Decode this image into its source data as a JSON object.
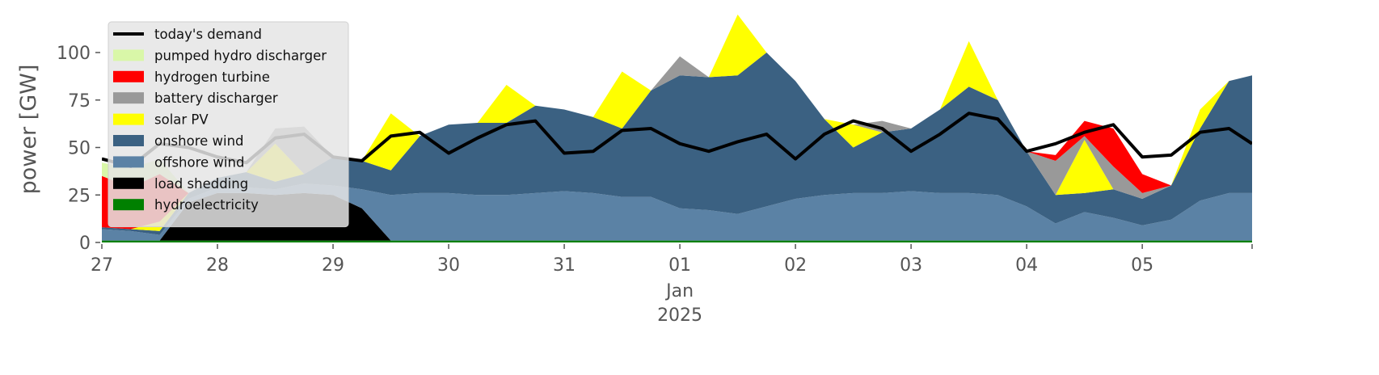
{
  "chart_data": {
    "type": "stacked_area",
    "ylabel": "power [GW]",
    "x": [
      0,
      0.25,
      0.5,
      0.75,
      1,
      1.25,
      1.5,
      1.75,
      2,
      2.25,
      2.5,
      2.75,
      3,
      3.25,
      3.5,
      3.75,
      4,
      4.25,
      4.5,
      4.75,
      5,
      5.25,
      5.5,
      5.75,
      6,
      6.25,
      6.5,
      6.75,
      7,
      7.25,
      7.5,
      7.75,
      8,
      8.25,
      8.5,
      8.75,
      9,
      9.25,
      9.5,
      9.75,
      9.95
    ],
    "xlim": [
      0,
      9.95
    ],
    "xticks": [
      {
        "value": 0,
        "label": "27"
      },
      {
        "value": 1,
        "label": "28"
      },
      {
        "value": 2,
        "label": "29"
      },
      {
        "value": 3,
        "label": "30"
      },
      {
        "value": 4,
        "label": "31"
      },
      {
        "value": 5,
        "label": "01"
      },
      {
        "value": 6,
        "label": "02"
      },
      {
        "value": 7,
        "label": "03"
      },
      {
        "value": 8,
        "label": "04"
      },
      {
        "value": 9,
        "label": "05"
      }
    ],
    "x_month": "Jan",
    "x_year": "2025",
    "ylim": [
      0,
      120
    ],
    "yticks": [
      0,
      25,
      50,
      75,
      100
    ],
    "demand": {
      "name": "today's demand",
      "color": "#000000",
      "values": [
        44,
        40,
        52,
        50,
        45,
        42,
        55,
        57,
        45,
        43,
        56,
        58,
        47,
        55,
        62,
        64,
        47,
        48,
        59,
        60,
        52,
        48,
        53,
        57,
        44,
        57,
        64,
        60,
        48,
        57,
        68,
        65,
        48,
        52,
        58,
        62,
        45,
        46,
        58,
        60,
        52
      ]
    },
    "series": [
      {
        "name": "hydroelectricity",
        "color": "#008000",
        "values": [
          1,
          1,
          1,
          1,
          1,
          1,
          1,
          1,
          1,
          1,
          1,
          1,
          1,
          1,
          1,
          1,
          1,
          1,
          1,
          1,
          1,
          1,
          1,
          1,
          1,
          1,
          1,
          1,
          1,
          1,
          1,
          1,
          1,
          1,
          1,
          1,
          1,
          1,
          1,
          1,
          1
        ]
      },
      {
        "name": "load shedding",
        "color": "#000000",
        "values": [
          0,
          0,
          0,
          20,
          25,
          25,
          24,
          25,
          24,
          17,
          0,
          0,
          0,
          0,
          0,
          0,
          0,
          0,
          0,
          0,
          0,
          0,
          0,
          0,
          0,
          0,
          0,
          0,
          0,
          0,
          0,
          0,
          0,
          0,
          0,
          0,
          0,
          0,
          0,
          0,
          0
        ]
      },
      {
        "name": "offshore wind",
        "color": "#5b82a5",
        "values": [
          6,
          5,
          3,
          2,
          3,
          3,
          3,
          5,
          5,
          10,
          24,
          25,
          25,
          24,
          24,
          25,
          26,
          25,
          23,
          23,
          17,
          16,
          14,
          18,
          22,
          24,
          25,
          25,
          26,
          25,
          25,
          24,
          18,
          9,
          15,
          12,
          8,
          11,
          21,
          25,
          25
        ]
      },
      {
        "name": "onshore wind",
        "color": "#3b6182",
        "values": [
          1,
          1,
          2,
          3,
          5,
          8,
          4,
          5,
          15,
          15,
          13,
          30,
          36,
          38,
          38,
          46,
          43,
          40,
          36,
          56,
          70,
          70,
          73,
          81,
          62,
          40,
          24,
          32,
          33,
          44,
          56,
          50,
          29,
          15,
          10,
          15,
          14,
          18,
          38,
          59,
          62
        ]
      },
      {
        "name": "solar PV",
        "color": "#ffff00",
        "values": [
          0,
          0,
          5,
          0,
          0,
          0,
          20,
          0,
          0,
          0,
          30,
          0,
          0,
          0,
          20,
          0,
          0,
          0,
          30,
          0,
          0,
          0,
          32,
          0,
          0,
          0,
          12,
          0,
          0,
          0,
          24,
          0,
          0,
          0,
          28,
          0,
          0,
          0,
          10,
          0,
          0
        ]
      },
      {
        "name": "battery discharger",
        "color": "#999999",
        "values": [
          0,
          0,
          0,
          0,
          0,
          0,
          8,
          25,
          0,
          0,
          0,
          0,
          0,
          0,
          0,
          0,
          0,
          0,
          0,
          0,
          10,
          0,
          0,
          0,
          0,
          0,
          0,
          6,
          0,
          0,
          0,
          0,
          0,
          18,
          2,
          12,
          3,
          0,
          0,
          0,
          0
        ]
      },
      {
        "name": "hydrogen turbine",
        "color": "#ff0000",
        "values": [
          27,
          22,
          25,
          0,
          0,
          0,
          0,
          0,
          0,
          0,
          0,
          0,
          0,
          0,
          0,
          0,
          0,
          0,
          0,
          0,
          0,
          0,
          0,
          0,
          0,
          0,
          0,
          0,
          0,
          0,
          0,
          0,
          0,
          3,
          8,
          20,
          10,
          0,
          0,
          0,
          0
        ]
      },
      {
        "name": "pumped hydro discharger",
        "color": "#d9f7a8",
        "values": [
          7,
          10,
          8,
          0,
          0,
          0,
          0,
          0,
          0,
          0,
          0,
          0,
          0,
          0,
          0,
          0,
          0,
          0,
          0,
          0,
          0,
          0,
          0,
          0,
          0,
          0,
          0,
          0,
          0,
          0,
          0,
          0,
          0,
          0,
          0,
          0,
          0,
          0,
          0,
          0,
          0
        ]
      }
    ]
  }
}
